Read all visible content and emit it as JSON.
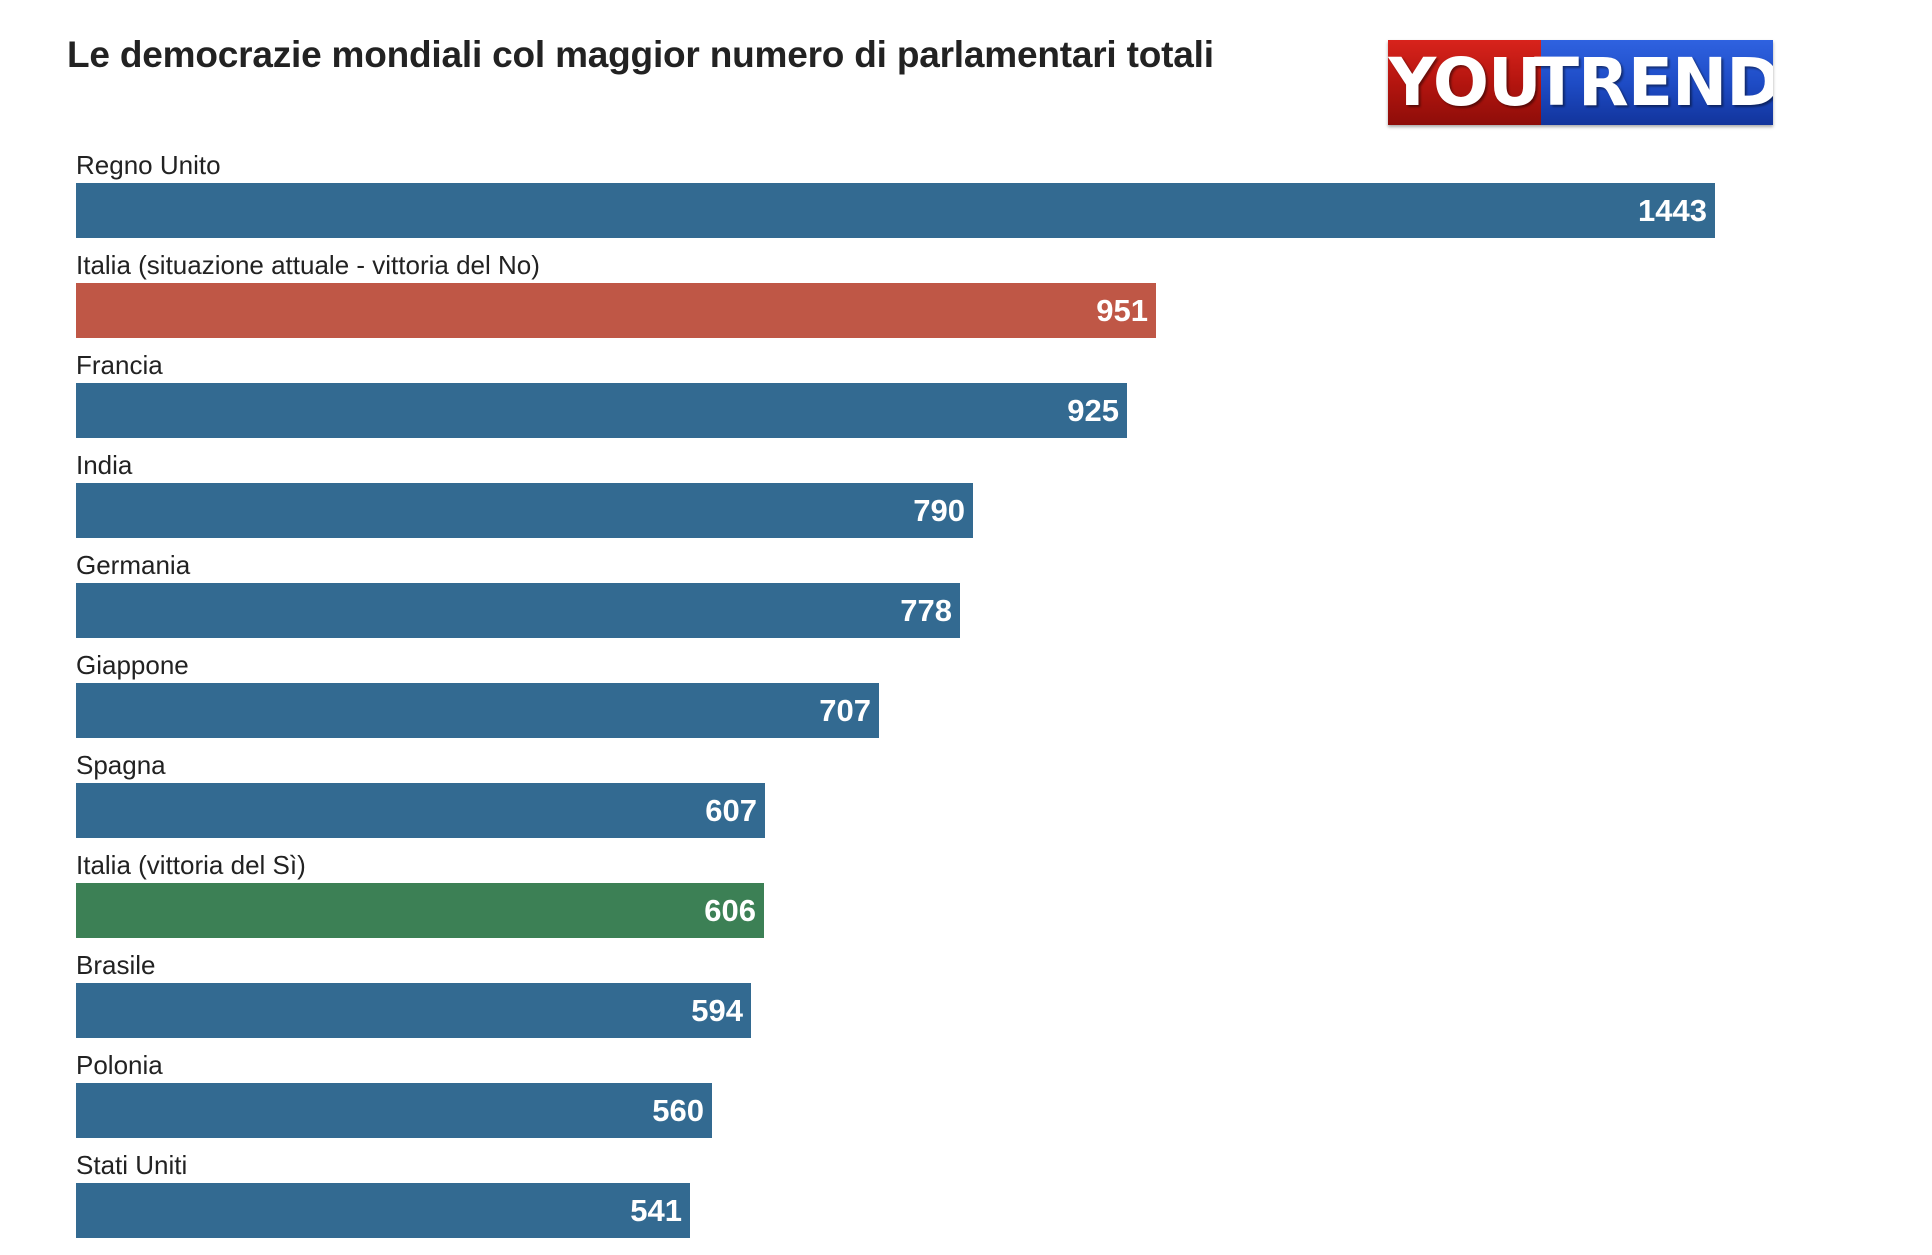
{
  "chart_data": {
    "type": "bar",
    "orientation": "horizontal",
    "title": "Le democrazie mondiali col maggior numero di parlamentari totali",
    "categories": [
      "Regno Unito",
      "Italia (situazione attuale - vittoria del No)",
      "Francia",
      "India",
      "Germania",
      "Giappone",
      "Spagna",
      "Italia (vittoria del Sì)",
      "Brasile",
      "Polonia",
      "Stati Uniti"
    ],
    "values": [
      1443,
      951,
      925,
      790,
      778,
      707,
      607,
      606,
      594,
      560,
      541
    ],
    "colors": [
      "#336a91",
      "#bf5746",
      "#336a91",
      "#336a91",
      "#336a91",
      "#336a91",
      "#336a91",
      "#3c8055",
      "#336a91",
      "#336a91",
      "#336a91"
    ],
    "xlim": [
      0,
      1443
    ],
    "grid": false,
    "legend": "none"
  },
  "logo": {
    "left_text": "YOU",
    "right_text": "TREND",
    "left_color": "#c41b14",
    "right_color": "#2453d4"
  }
}
